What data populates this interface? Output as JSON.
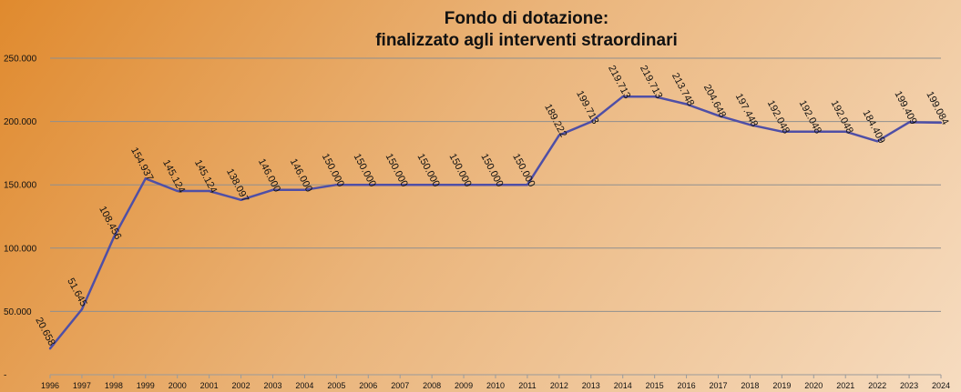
{
  "chart_data": {
    "type": "line",
    "title": "Fondo di dotazione:",
    "subtitle": "finalizzato agli interventi straordinari",
    "xlabel": "",
    "ylabel": "",
    "ylim": [
      0,
      250000
    ],
    "y_ticks": [
      "-",
      "50.000",
      "100.000",
      "150.000",
      "200.000",
      "250.000"
    ],
    "grid": true,
    "legend": "none",
    "line_color": "#4f4fa6",
    "categories": [
      "1996",
      "1997",
      "1998",
      "1999",
      "2000",
      "2001",
      "2002",
      "2003",
      "2004",
      "2005",
      "2006",
      "2007",
      "2008",
      "2009",
      "2010",
      "2011",
      "2012",
      "2013",
      "2014",
      "2015",
      "2016",
      "2017",
      "2018",
      "2019",
      "2020",
      "2021",
      "2022",
      "2023",
      "2024"
    ],
    "series": [
      {
        "values": [
          20658,
          51645,
          108456,
          154937,
          145124,
          145124,
          138097,
          146000,
          146000,
          150000,
          150000,
          150000,
          150000,
          150000,
          150000,
          150000,
          189222,
          199713,
          219713,
          219713,
          213748,
          204648,
          197448,
          192048,
          192048,
          192048,
          184409,
          199409,
          199084
        ],
        "data_labels": [
          "20.658",
          "51.645",
          "108.456",
          "154.937",
          "145.124",
          "145.124",
          "138.097",
          "146.000",
          "146.000",
          "150.000",
          "150.000",
          "150.000",
          "150.000",
          "150.000",
          "150.000",
          "150.000",
          "189.222",
          "199.713",
          "219.713",
          "219.713",
          "213.748",
          "204.648",
          "197.448",
          "192.048",
          "192.048",
          "192.048",
          "184.409",
          "199.409",
          "199.084"
        ]
      }
    ]
  }
}
